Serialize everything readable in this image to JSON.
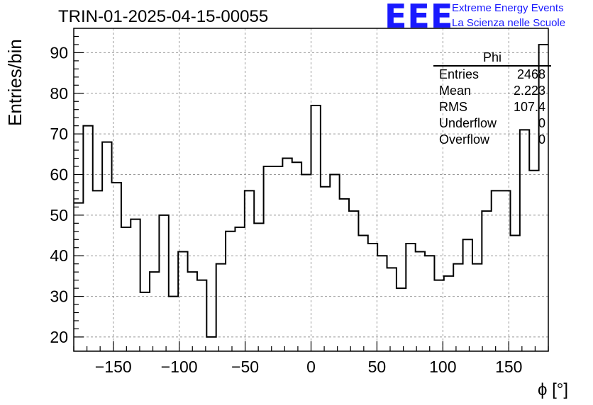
{
  "title": "TRIN-01-2025-04-15-00055",
  "logo": {
    "mark": "EEE",
    "line1": "Extreme Energy Events",
    "line2": "La Scienza nelle Scuole"
  },
  "stats": {
    "name": "Phi",
    "rows": [
      {
        "label": "Entries",
        "value": "2468"
      },
      {
        "label": "Mean",
        "value": "2.223"
      },
      {
        "label": "RMS",
        "value": "107.4"
      },
      {
        "label": "Underflow",
        "value": "0"
      },
      {
        "label": "Overflow",
        "value": "0"
      }
    ]
  },
  "colors": {
    "line": "#000000",
    "grid": "#999999",
    "logo": "#1a1aff"
  },
  "chart_data": {
    "type": "histogram",
    "title": "TRIN-01-2025-04-15-00055",
    "xlabel": "ϕ [°]",
    "ylabel": "Entries/bin",
    "xlim": [
      -180,
      180
    ],
    "ylim": [
      16.5,
      96
    ],
    "bin_width": 7.2,
    "grid": true,
    "xticks": [
      -150,
      -100,
      -50,
      0,
      50,
      100,
      150
    ],
    "yticks": [
      20,
      30,
      40,
      50,
      60,
      70,
      80,
      90
    ],
    "values": [
      53,
      72,
      56,
      68,
      58,
      47,
      49,
      31,
      36,
      50,
      30,
      41,
      36,
      34,
      20,
      38,
      46,
      47,
      56,
      48,
      62,
      62,
      64,
      63,
      60,
      77,
      57,
      60,
      54,
      51,
      45,
      43,
      40,
      37,
      32,
      43,
      41,
      40,
      34,
      35,
      38,
      44,
      38,
      51,
      56,
      56,
      45,
      71,
      61,
      92
    ]
  }
}
